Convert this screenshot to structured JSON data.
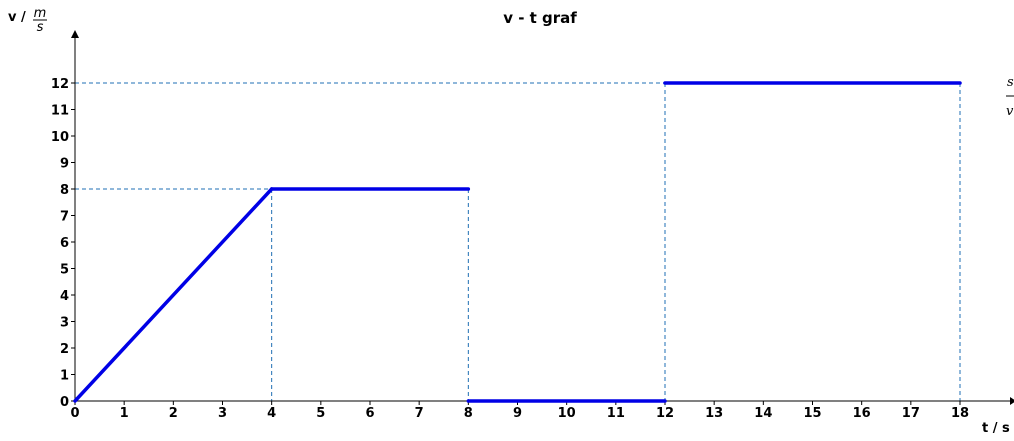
{
  "chart_data": {
    "type": "line",
    "title": "v - t  graf",
    "xlabel": "t / s",
    "ylabel_prefix": "v /",
    "ylabel_unit_num": "m",
    "ylabel_unit_den": "s",
    "xlim": [
      0,
      18
    ],
    "ylim": [
      0,
      12
    ],
    "xticks": [
      0,
      1,
      2,
      3,
      4,
      5,
      6,
      7,
      8,
      9,
      10,
      11,
      12,
      13,
      14,
      15,
      16,
      17,
      18
    ],
    "yticks": [
      0,
      1,
      2,
      3,
      4,
      5,
      6,
      7,
      8,
      9,
      10,
      11,
      12
    ],
    "grid": false,
    "series": [
      {
        "segments": [
          {
            "x": [
              0,
              4
            ],
            "y": [
              0,
              8
            ]
          },
          {
            "x": [
              4,
              8
            ],
            "y": [
              8,
              8
            ]
          },
          {
            "x": [
              8,
              12
            ],
            "y": [
              0,
              0
            ]
          },
          {
            "x": [
              12,
              18
            ],
            "y": [
              12,
              12
            ]
          }
        ]
      }
    ],
    "guides": [
      {
        "x": 4,
        "y": 8
      },
      {
        "x": 8,
        "y": 8
      },
      {
        "x": 12,
        "y": 12
      },
      {
        "x": 18,
        "y": 12
      }
    ],
    "side_fragments": [
      "s",
      "v"
    ],
    "colors": {
      "series": "#0000e6",
      "guide": "#1f6fb4",
      "axis": "#000000"
    }
  }
}
